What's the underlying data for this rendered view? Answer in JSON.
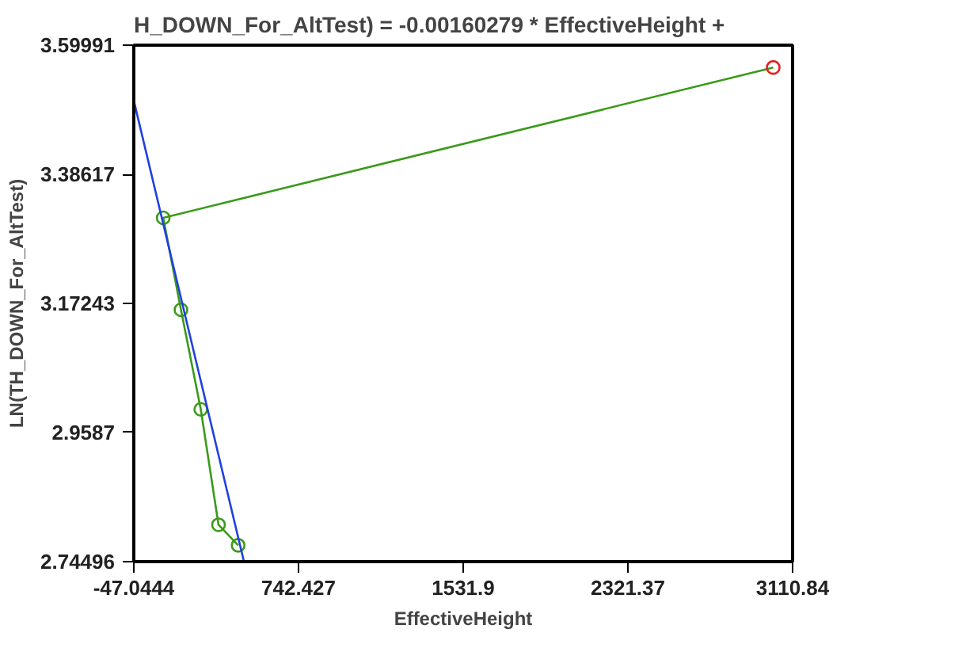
{
  "chart_data": {
    "type": "line",
    "title": "H_DOWN_For_AltTest) = -0.00160279 * EffectiveHeight +",
    "xlabel": "EffectiveHeight",
    "ylabel": "LN(TH_DOWN_For_AltTest)",
    "xlim": [
      -47.0444,
      3110.84
    ],
    "ylim": [
      2.74496,
      3.59991
    ],
    "xticks": [
      -47.0444,
      742.427,
      1531.9,
      2321.37,
      3110.84
    ],
    "yticks": [
      2.74496,
      2.9587,
      3.17243,
      3.38617,
      3.59991
    ],
    "grid": false,
    "line_style": "solid",
    "series": [
      {
        "color": "#3a9a1a",
        "marker": "none",
        "x": [
          3018,
          94,
          179,
          274,
          359,
          453
        ],
        "values": [
          3.563,
          3.314,
          3.162,
          2.997,
          2.806,
          2.772
        ]
      },
      {
        "type": "scatter",
        "color": "#3a9a1a",
        "marker": "circle",
        "x": [
          94,
          179,
          274,
          359,
          453
        ],
        "values": [
          3.314,
          3.162,
          2.997,
          2.806,
          2.772
        ]
      },
      {
        "type": "scatter",
        "color": "#e02020",
        "marker": "circle",
        "x": [
          3018
        ],
        "values": [
          3.563
        ]
      },
      {
        "color": "#2040e0",
        "marker": "none",
        "x": [
          -47.0444,
          481
        ],
        "values": [
          3.508,
          2.745
        ]
      }
    ]
  }
}
